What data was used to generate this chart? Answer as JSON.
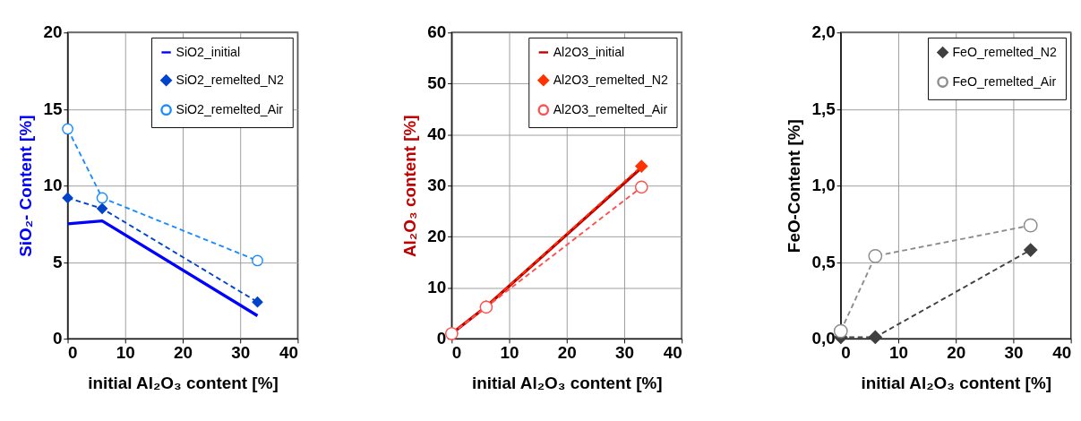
{
  "chart_data": [
    {
      "type": "line",
      "xlabel": "initial Al₂O₃ content [%]",
      "ylabel": "SiO₂- Content [%]",
      "x": [
        0,
        6,
        33
      ],
      "xlim": [
        0,
        40
      ],
      "xticks": [
        0,
        10,
        20,
        30,
        40
      ],
      "ylim": [
        0,
        20
      ],
      "yticks": [
        0,
        5,
        10,
        15,
        20
      ],
      "grid": true,
      "legend": "top right",
      "series": [
        {
          "name": "SiO2_initial",
          "color": "#0000ff",
          "values": [
            7.5,
            7.7,
            1.5
          ],
          "marker": "none",
          "line_style": "solid"
        },
        {
          "name": "SiO2_remelted_N2",
          "color": "#0044cc",
          "values": [
            9.2,
            8.5,
            2.4
          ],
          "marker": "diamond",
          "line_style": "dashed"
        },
        {
          "name": "SiO2_remelted_Air",
          "color": "#1a8cff",
          "values": [
            13.7,
            9.2,
            5.1
          ],
          "marker": "circle",
          "line_style": "dashed"
        }
      ]
    },
    {
      "type": "line",
      "xlabel": "initial Al₂O₃ content [%]",
      "ylabel": "Al₂O₃ content  [%]",
      "x": [
        0,
        6,
        33
      ],
      "xlim": [
        0,
        40
      ],
      "xticks": [
        0,
        10,
        20,
        30,
        40
      ],
      "ylim": [
        0,
        60
      ],
      "yticks": [
        0,
        10,
        20,
        30,
        40,
        50,
        60
      ],
      "grid": true,
      "legend": "top right",
      "series": [
        {
          "name": "Al2O3_initial",
          "color": "#c00000",
          "values": [
            1,
            6.3,
            33.5
          ],
          "marker": "none",
          "line_style": "solid"
        },
        {
          "name": "Al2O3_remelted_N2",
          "color": "#ff3300",
          "values": [
            1,
            6.3,
            33.8
          ],
          "marker": "diamond",
          "line_style": "dashed"
        },
        {
          "name": "Al2O3_remelted_Air",
          "color": "#ff5050",
          "values": [
            1,
            6.2,
            29.7
          ],
          "marker": "circle",
          "line_style": "dashed"
        }
      ]
    },
    {
      "type": "line",
      "xlabel": "initial Al₂O₃ content [%]",
      "ylabel": "FeO-Content [%]",
      "x": [
        0,
        6,
        33
      ],
      "xlim": [
        0,
        40
      ],
      "xticks": [
        0,
        10,
        20,
        30,
        40
      ],
      "ylim": [
        0,
        2
      ],
      "yticks": [
        {
          "value": 0,
          "label": "0,0"
        },
        {
          "value": 0.5,
          "label": "0,5"
        },
        {
          "value": 1,
          "label": "1,0"
        },
        {
          "value": 1.5,
          "label": "1,5"
        },
        {
          "value": 2,
          "label": "2,0"
        }
      ],
      "grid": true,
      "legend": "top right",
      "series": [
        {
          "name": "FeO_remelted_N2",
          "color": "#404040",
          "values": [
            0.01,
            0.01,
            0.58
          ],
          "marker": "diamond",
          "line_style": "dashed"
        },
        {
          "name": "FeO_remelted_Air",
          "color": "#8c8c8c",
          "values": [
            0.05,
            0.54,
            0.74
          ],
          "marker": "circle",
          "line_style": "dashed"
        }
      ]
    }
  ]
}
